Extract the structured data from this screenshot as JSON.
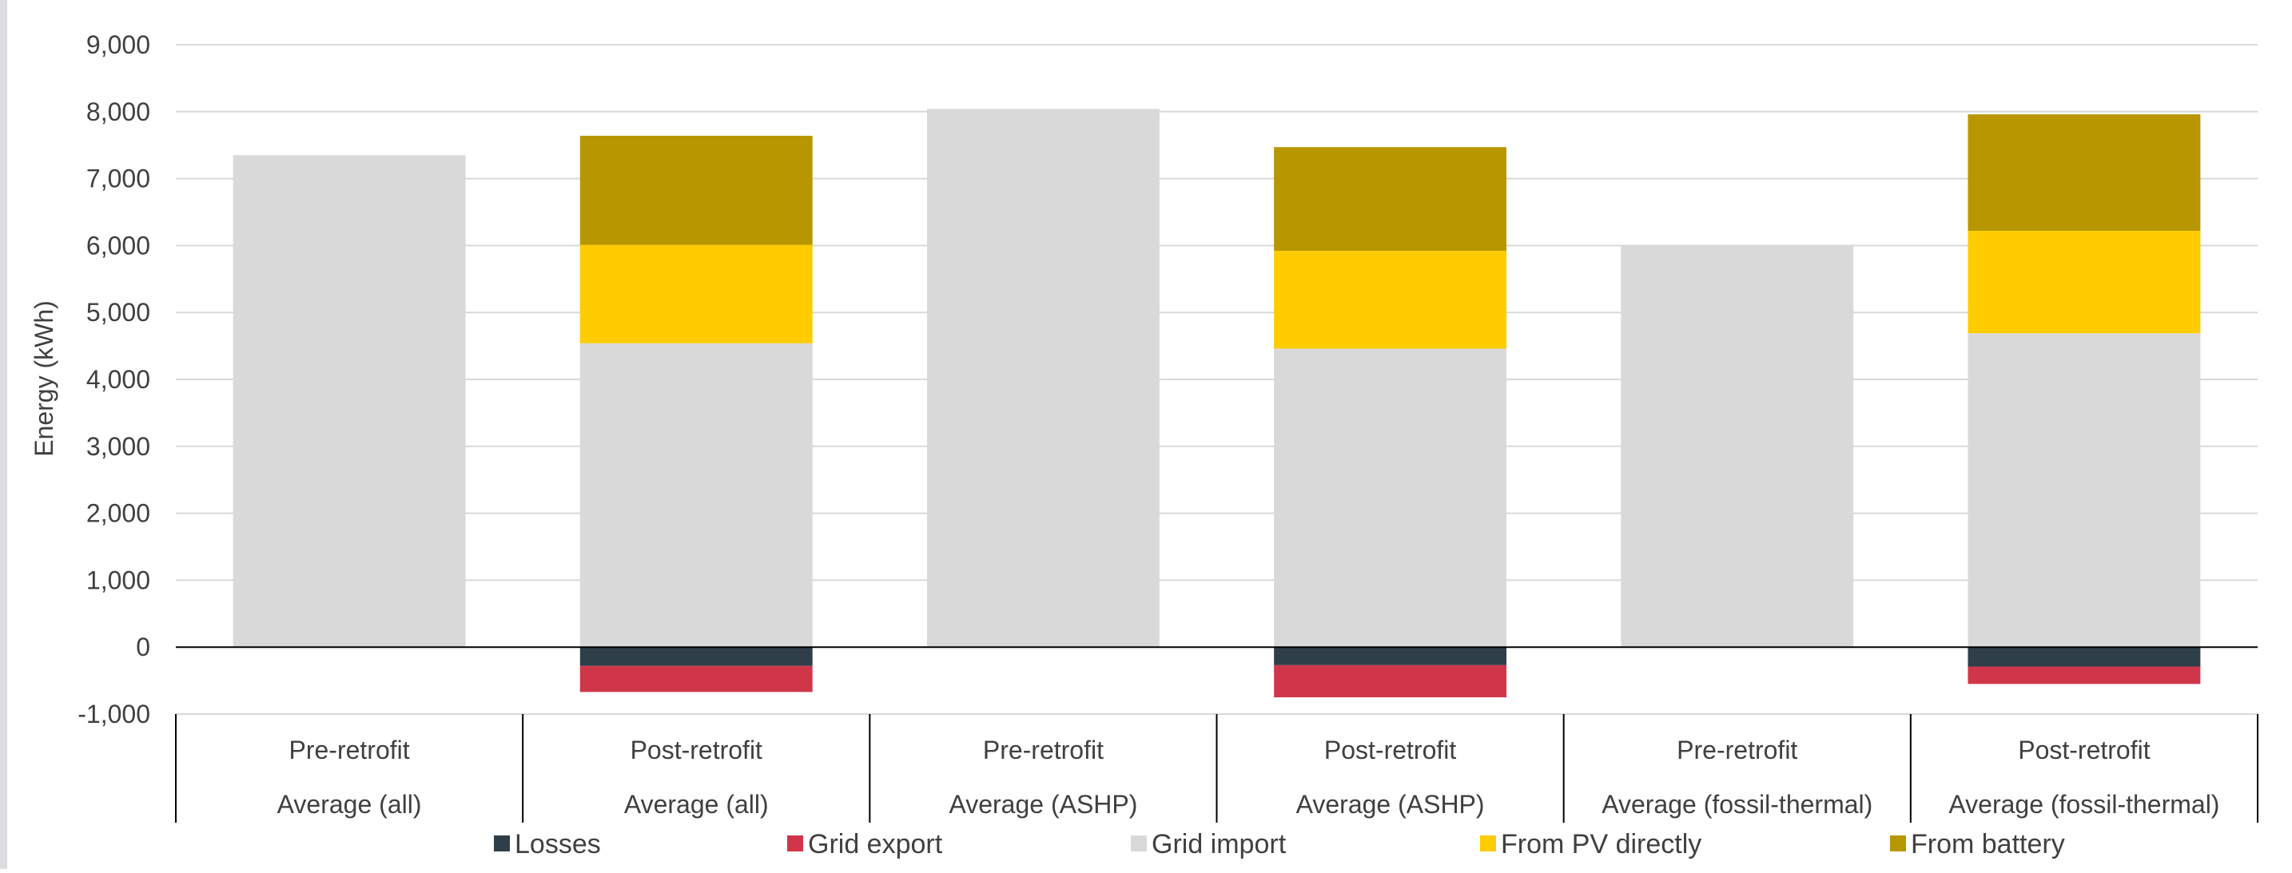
{
  "chart_data": {
    "type": "bar",
    "stacked": true,
    "title": "",
    "ylabel": "Energy (kWh)",
    "ylim": [
      -1000,
      9000
    ],
    "yticks": [
      -1000,
      0,
      1000,
      2000,
      3000,
      4000,
      5000,
      6000,
      7000,
      8000,
      9000
    ],
    "ytick_labels": [
      "-1,000",
      "0",
      "1,000",
      "2,000",
      "3,000",
      "4,000",
      "5,000",
      "6,000",
      "7,000",
      "8,000",
      "9,000"
    ],
    "grid": true,
    "legend_position": "bottom",
    "categories": [
      {
        "top": "Pre-retrofit",
        "bottom": "Average (all)"
      },
      {
        "top": "Post-retrofit",
        "bottom": "Average (all)"
      },
      {
        "top": "Pre-retrofit",
        "bottom": "Average (ASHP)"
      },
      {
        "top": "Post-retrofit",
        "bottom": "Average (ASHP)"
      },
      {
        "top": "Pre-retrofit",
        "bottom": "Average (fossil-thermal)"
      },
      {
        "top": "Post-retrofit",
        "bottom": "Average (fossil-thermal)"
      }
    ],
    "series": [
      {
        "name": "Losses",
        "color": "#2e3f4a",
        "values": [
          0,
          -280,
          0,
          -270,
          0,
          -290
        ]
      },
      {
        "name": "Grid export",
        "color": "#d0364a",
        "values": [
          0,
          -390,
          0,
          -480,
          0,
          -260
        ]
      },
      {
        "name": "Grid import",
        "color": "#d9d9d9",
        "values": [
          7350,
          4540,
          8040,
          4460,
          6000,
          4690
        ]
      },
      {
        "name": "From PV directly",
        "color": "#ffcc00",
        "values": [
          0,
          1470,
          0,
          1460,
          0,
          1530
        ]
      },
      {
        "name": "From battery",
        "color": "#b89600",
        "values": [
          0,
          1630,
          0,
          1550,
          0,
          1740
        ]
      }
    ]
  }
}
